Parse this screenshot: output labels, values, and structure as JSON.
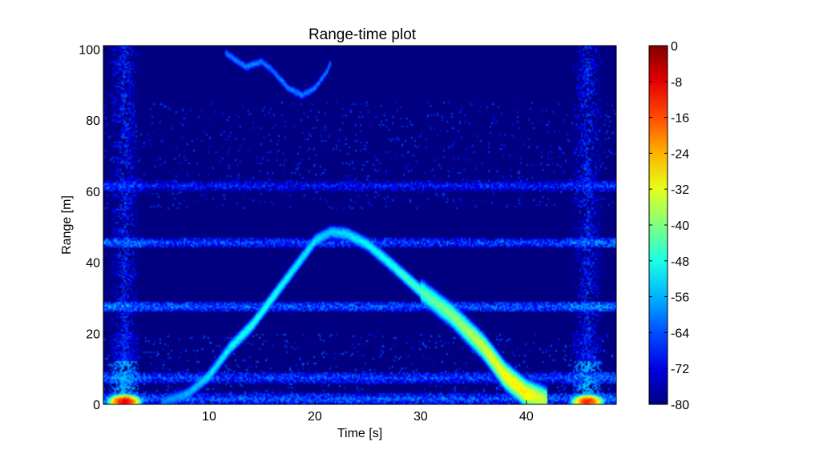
{
  "chart_data": {
    "type": "heatmap",
    "title": "Range-time plot",
    "xlabel": "Time [s]",
    "ylabel": "Range [m]",
    "xlim": [
      0,
      48.5
    ],
    "ylim": [
      0,
      101
    ],
    "x_ticks": [
      10,
      20,
      30,
      40
    ],
    "y_ticks": [
      0,
      20,
      40,
      60,
      80,
      100
    ],
    "grid": false,
    "colormap": "jet",
    "colorbar": {
      "min": -80,
      "max": 0,
      "ticks": [
        0,
        -8,
        -16,
        -24,
        -32,
        -40,
        -48,
        -56,
        -64,
        -72,
        -80
      ],
      "placement": "right"
    },
    "background_level": -80,
    "features": {
      "main_track": {
        "description_points": [
          [
            5.5,
            0.5
          ],
          [
            8,
            3
          ],
          [
            10,
            8
          ],
          [
            12,
            16
          ],
          [
            14,
            22
          ],
          [
            16,
            30
          ],
          [
            18,
            38
          ],
          [
            20,
            46
          ],
          [
            21.5,
            48.5
          ],
          [
            23,
            48
          ],
          [
            25,
            45
          ],
          [
            27,
            40
          ],
          [
            30,
            32
          ],
          [
            33,
            25
          ],
          [
            36,
            16
          ],
          [
            38,
            8
          ],
          [
            40,
            3
          ],
          [
            42,
            1
          ]
        ],
        "levels": [
          -60,
          -56,
          -52,
          -50,
          -48,
          -48,
          -50,
          -52,
          -54,
          -52,
          -50,
          -48,
          -44,
          -40,
          -34,
          -30,
          -28,
          -36
        ]
      },
      "horizontal_bands": [
        {
          "y": 61.5,
          "level": -66
        },
        {
          "y": 45.5,
          "level": -62
        },
        {
          "y": 27.5,
          "level": -60
        },
        {
          "y": 7.5,
          "level": -62
        },
        {
          "y": 1.5,
          "level": -60
        }
      ],
      "vertical_bands": [
        {
          "x": 2.0,
          "level": -66
        },
        {
          "x": 45.8,
          "level": -66
        }
      ],
      "hot_spots": [
        {
          "x": 2.0,
          "y": 0.8,
          "level": -8
        },
        {
          "x": 45.8,
          "y": 0.8,
          "level": -12
        }
      ],
      "far_arc": {
        "points": [
          [
            11.5,
            99
          ],
          [
            13.5,
            95
          ],
          [
            15,
            96.5
          ],
          [
            16,
            94
          ],
          [
            17.5,
            89
          ],
          [
            18.8,
            87
          ],
          [
            20,
            89
          ],
          [
            21,
            93
          ],
          [
            21.5,
            96
          ]
        ],
        "level": -60
      }
    }
  }
}
